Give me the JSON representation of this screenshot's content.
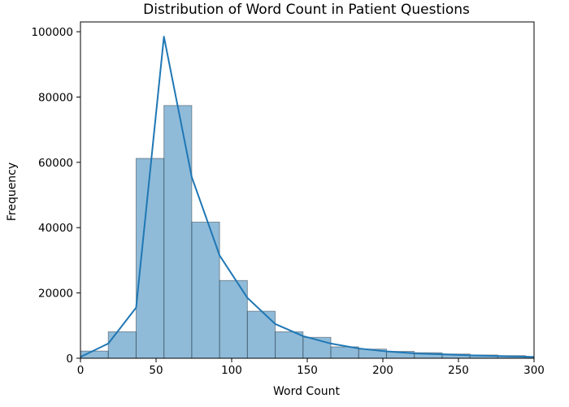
{
  "chart_data": {
    "type": "bar",
    "title": "Distribution of Word Count in Patient Questions",
    "xlabel": "Word Count",
    "ylabel": "Frequency",
    "xlim": [
      0,
      300
    ],
    "ylim": [
      0,
      103000
    ],
    "xticks": [
      0,
      50,
      100,
      150,
      200,
      250,
      300
    ],
    "yticks": [
      0,
      20000,
      40000,
      60000,
      80000,
      100000
    ],
    "grid": false,
    "bar_color": "#1f77b4",
    "line_color": "#1f77b4",
    "bins": {
      "width": 18.4,
      "starts": [
        0,
        18.4,
        36.8,
        55.2,
        73.6,
        92.0,
        110.4,
        128.8,
        147.2,
        165.6,
        184.0,
        202.4,
        220.8,
        239.2,
        257.6,
        276.0,
        294.4
      ],
      "counts": [
        2200,
        8100,
        61200,
        77400,
        41700,
        23800,
        14400,
        8100,
        6400,
        3500,
        2800,
        2100,
        1700,
        1300,
        1000,
        800,
        500
      ]
    },
    "series": [
      {
        "type": "line",
        "x": [
          0,
          18.4,
          36.8,
          55.2,
          73.6,
          92.0,
          110.4,
          128.8,
          147.2,
          165.6,
          184.0,
          202.4,
          220.8,
          239.2,
          257.6,
          276.0,
          300
        ],
        "y": [
          400,
          4500,
          15500,
          98500,
          55500,
          31500,
          18500,
          10500,
          6800,
          4500,
          3000,
          2100,
          1500,
          1200,
          900,
          700,
          400
        ]
      }
    ]
  }
}
